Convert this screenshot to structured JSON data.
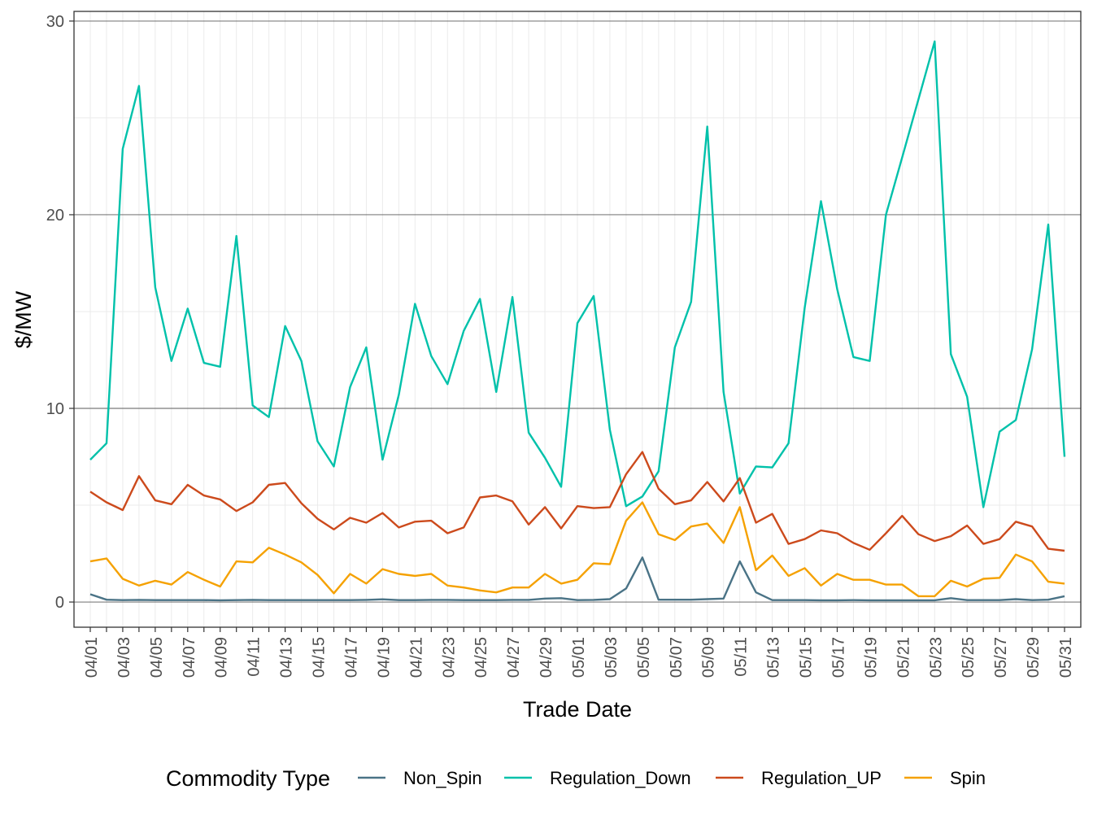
{
  "chart_data": {
    "type": "line",
    "title": "",
    "xlabel": "Trade Date",
    "ylabel": "$/MW",
    "ylim": [
      -1.3,
      30.5
    ],
    "yticks": [
      0,
      10,
      20,
      30
    ],
    "x": [
      "04/01",
      "04/02",
      "04/03",
      "04/04",
      "04/05",
      "04/06",
      "04/07",
      "04/08",
      "04/09",
      "04/10",
      "04/11",
      "04/12",
      "04/13",
      "04/14",
      "04/15",
      "04/16",
      "04/17",
      "04/18",
      "04/19",
      "04/20",
      "04/21",
      "04/22",
      "04/23",
      "04/24",
      "04/25",
      "04/26",
      "04/27",
      "04/28",
      "04/29",
      "04/30",
      "05/01",
      "05/02",
      "05/03",
      "05/04",
      "05/05",
      "05/06",
      "05/07",
      "05/08",
      "05/09",
      "05/10",
      "05/11",
      "05/12",
      "05/13",
      "05/14",
      "05/15",
      "05/16",
      "05/17",
      "05/18",
      "05/19",
      "05/20",
      "05/21",
      "05/22",
      "05/23",
      "05/24",
      "05/25",
      "05/26",
      "05/27",
      "05/28",
      "05/29",
      "05/30",
      "05/31"
    ],
    "xtick_labels": [
      "04/01",
      "04/03",
      "04/05",
      "04/07",
      "04/09",
      "04/11",
      "04/13",
      "04/15",
      "04/17",
      "04/19",
      "04/21",
      "04/23",
      "04/25",
      "04/27",
      "04/29",
      "05/01",
      "05/03",
      "05/05",
      "05/07",
      "05/09",
      "05/11",
      "05/13",
      "05/15",
      "05/17",
      "05/19",
      "05/21",
      "05/23",
      "05/25",
      "05/27",
      "05/29",
      "05/31"
    ],
    "grid": true,
    "legend": {
      "title": "Commodity Type",
      "position": "bottom"
    },
    "series": [
      {
        "name": "Non_Spin",
        "color": "#4a7386",
        "values": [
          0.4,
          0.12,
          0.1,
          0.11,
          0.1,
          0.1,
          0.1,
          0.1,
          0.09,
          0.1,
          0.11,
          0.1,
          0.1,
          0.1,
          0.1,
          0.1,
          0.1,
          0.11,
          0.14,
          0.1,
          0.1,
          0.11,
          0.11,
          0.1,
          0.1,
          0.1,
          0.11,
          0.11,
          0.18,
          0.2,
          0.1,
          0.11,
          0.15,
          0.7,
          2.3,
          0.12,
          0.12,
          0.12,
          0.15,
          0.18,
          2.1,
          0.5,
          0.1,
          0.1,
          0.1,
          0.09,
          0.09,
          0.1,
          0.09,
          0.09,
          0.09,
          0.09,
          0.09,
          0.2,
          0.1,
          0.1,
          0.1,
          0.15,
          0.1,
          0.12,
          0.3
        ]
      },
      {
        "name": "Regulation_Down",
        "color": "#00c1aa",
        "values": [
          7.35,
          8.2,
          23.4,
          26.65,
          16.25,
          12.45,
          15.15,
          12.35,
          12.15,
          18.9,
          10.15,
          9.55,
          14.25,
          12.45,
          8.3,
          7.0,
          11.1,
          13.15,
          7.35,
          10.7,
          15.4,
          12.7,
          11.25,
          14.0,
          15.65,
          10.85,
          15.75,
          8.75,
          7.45,
          5.95,
          14.4,
          15.8,
          8.9,
          4.95,
          5.45,
          6.75,
          13.15,
          15.5,
          24.55,
          10.85,
          5.6,
          7.0,
          6.95,
          8.2,
          15.2,
          20.7,
          16.15,
          12.65,
          12.45,
          20.0,
          22.95,
          25.95,
          28.95,
          12.8,
          10.6,
          4.9,
          8.8,
          9.4,
          13.05,
          19.5,
          7.5
        ]
      },
      {
        "name": "Regulation_UP",
        "color": "#cc4a1c",
        "values": [
          5.7,
          5.15,
          4.75,
          6.5,
          5.25,
          5.05,
          6.05,
          5.5,
          5.3,
          4.7,
          5.15,
          6.05,
          6.15,
          5.1,
          4.3,
          3.75,
          4.35,
          4.1,
          4.6,
          3.85,
          4.15,
          4.2,
          3.55,
          3.85,
          5.4,
          5.5,
          5.2,
          4.0,
          4.9,
          3.8,
          4.95,
          4.85,
          4.9,
          6.6,
          7.75,
          5.85,
          5.05,
          5.25,
          6.2,
          5.2,
          6.4,
          4.1,
          4.55,
          3.0,
          3.25,
          3.7,
          3.55,
          3.05,
          2.7,
          3.55,
          4.45,
          3.5,
          3.15,
          3.4,
          3.95,
          3.0,
          3.25,
          4.15,
          3.9,
          2.75,
          2.65
        ]
      },
      {
        "name": "Spin",
        "color": "#f5a100",
        "values": [
          2.1,
          2.25,
          1.2,
          0.85,
          1.1,
          0.9,
          1.55,
          1.15,
          0.8,
          2.1,
          2.05,
          2.8,
          2.45,
          2.05,
          1.4,
          0.45,
          1.45,
          0.95,
          1.7,
          1.45,
          1.35,
          1.45,
          0.85,
          0.75,
          0.6,
          0.5,
          0.75,
          0.75,
          1.45,
          0.95,
          1.15,
          2.0,
          1.95,
          4.2,
          5.15,
          3.5,
          3.2,
          3.9,
          4.05,
          3.05,
          4.9,
          1.65,
          2.4,
          1.35,
          1.75,
          0.85,
          1.45,
          1.15,
          1.15,
          0.9,
          0.9,
          0.3,
          0.3,
          1.1,
          0.8,
          1.2,
          1.25,
          2.45,
          2.1,
          1.05,
          0.95
        ]
      }
    ]
  }
}
